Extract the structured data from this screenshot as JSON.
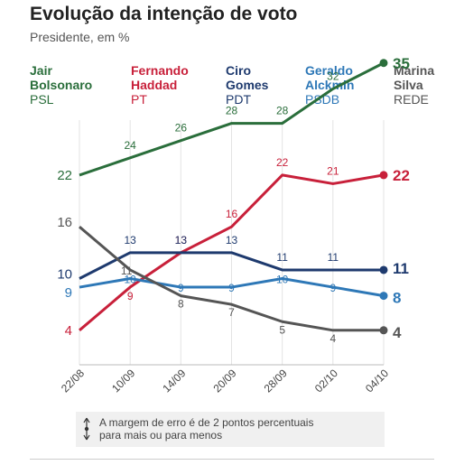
{
  "header": {
    "title": "Evolução da intenção de voto",
    "subtitle": "Presidente, em %"
  },
  "legend": [
    {
      "name_line1": "Jair",
      "name_line2": "Bolsonaro",
      "party": "PSL",
      "color": "#2a6e3b"
    },
    {
      "name_line1": "Fernando",
      "name_line2": "Haddad",
      "party": "PT",
      "color": "#c8203a"
    },
    {
      "name_line1": "Ciro",
      "name_line2": "Gomes",
      "party": "PDT",
      "color": "#1e3a6e"
    },
    {
      "name_line1": "Geraldo",
      "name_line2": "Alckmin",
      "party": "PSDB",
      "color": "#2e78b7"
    },
    {
      "name_line1": "Marina",
      "name_line2": "Silva",
      "party": "REDE",
      "color": "#555555"
    }
  ],
  "note": {
    "text": "A margem de erro é de 2 pontos percentuais\npara mais ou para menos",
    "icon": "up-down-arrow-icon"
  },
  "chart_data": {
    "type": "line",
    "x": [
      "22/08",
      "10/09",
      "14/09",
      "20/09",
      "28/09",
      "02/10",
      "04/10"
    ],
    "series": [
      {
        "name": "Jair Bolsonaro",
        "color": "#2a6e3b",
        "values": [
          22,
          24,
          26,
          28,
          28,
          32,
          35
        ]
      },
      {
        "name": "Fernando Haddad",
        "color": "#c8203a",
        "values": [
          4,
          9,
          13,
          16,
          22,
          21,
          22
        ]
      },
      {
        "name": "Ciro Gomes",
        "color": "#1e3a6e",
        "values": [
          10,
          13,
          13,
          13,
          11,
          11,
          11
        ]
      },
      {
        "name": "Geraldo Alckmin",
        "color": "#2e78b7",
        "values": [
          9,
          10,
          9,
          9,
          10,
          9,
          8
        ]
      },
      {
        "name": "Marina Silva",
        "color": "#555555",
        "values": [
          16,
          11,
          8,
          7,
          5,
          4,
          4
        ]
      }
    ],
    "ylim": [
      0,
      45
    ],
    "grid": "vertical"
  }
}
